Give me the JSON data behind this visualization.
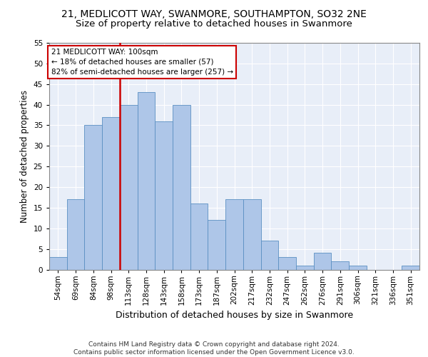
{
  "title1": "21, MEDLICOTT WAY, SWANMORE, SOUTHAMPTON, SO32 2NE",
  "title2": "Size of property relative to detached houses in Swanmore",
  "xlabel": "Distribution of detached houses by size in Swanmore",
  "ylabel": "Number of detached properties",
  "bar_labels": [
    "54sqm",
    "69sqm",
    "84sqm",
    "98sqm",
    "113sqm",
    "128sqm",
    "143sqm",
    "158sqm",
    "173sqm",
    "187sqm",
    "202sqm",
    "217sqm",
    "232sqm",
    "247sqm",
    "262sqm",
    "276sqm",
    "291sqm",
    "306sqm",
    "321sqm",
    "336sqm",
    "351sqm"
  ],
  "bar_values": [
    3,
    17,
    35,
    37,
    40,
    43,
    36,
    40,
    16,
    12,
    17,
    17,
    7,
    3,
    1,
    4,
    2,
    1,
    0,
    0,
    1
  ],
  "bar_color": "#aec6e8",
  "bar_edge_color": "#5a8fc2",
  "vline_x": 3.5,
  "vline_color": "#cc0000",
  "annotation_text": "21 MEDLICOTT WAY: 100sqm\n← 18% of detached houses are smaller (57)\n82% of semi-detached houses are larger (257) →",
  "annotation_box_color": "#ffffff",
  "annotation_box_edge": "#cc0000",
  "ylim": [
    0,
    55
  ],
  "yticks": [
    0,
    5,
    10,
    15,
    20,
    25,
    30,
    35,
    40,
    45,
    50,
    55
  ],
  "background_color": "#e8eef8",
  "footer": "Contains HM Land Registry data © Crown copyright and database right 2024.\nContains public sector information licensed under the Open Government Licence v3.0.",
  "title1_fontsize": 10,
  "title2_fontsize": 9.5,
  "xlabel_fontsize": 9,
  "ylabel_fontsize": 8.5,
  "tick_fontsize": 7.5,
  "annotation_fontsize": 7.5,
  "footer_fontsize": 6.5
}
